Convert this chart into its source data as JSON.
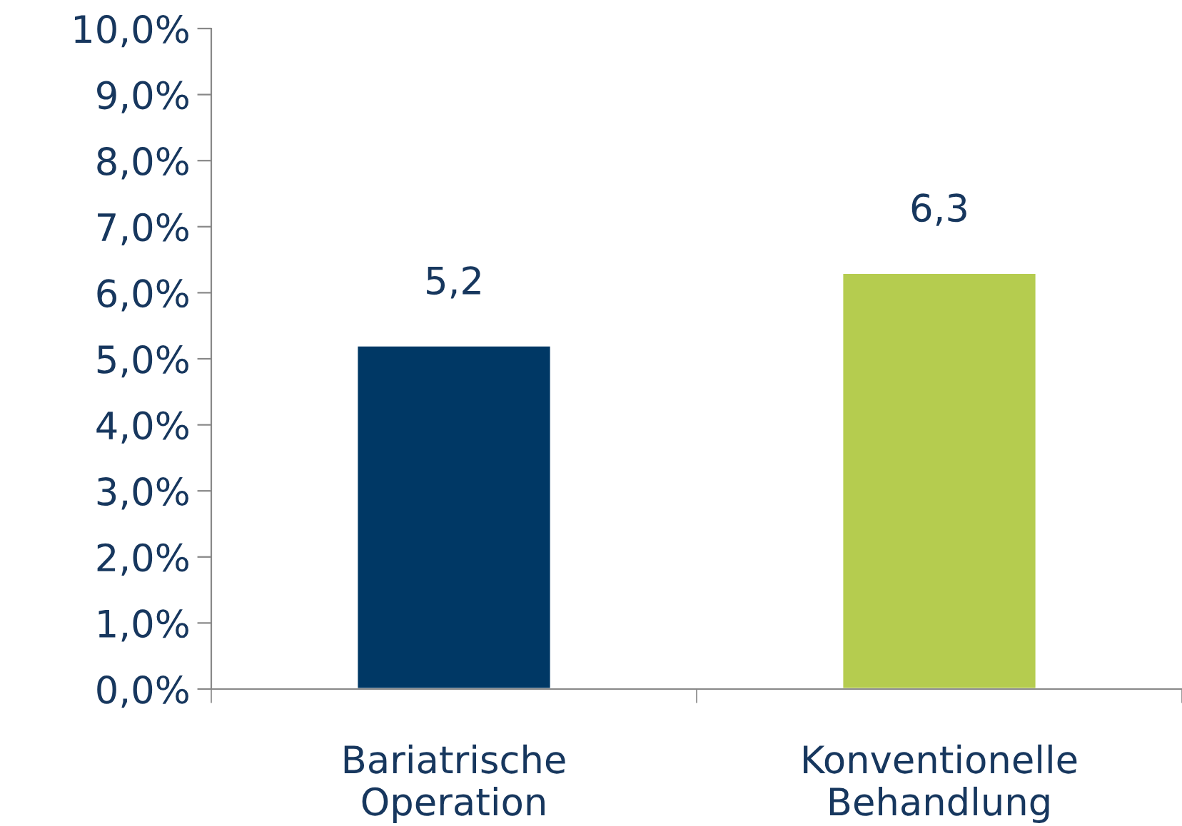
{
  "chart_data": {
    "type": "bar",
    "categories": [
      "Bariatrische\nOperation",
      "Konventionelle\nBehandlung"
    ],
    "values": [
      5.2,
      6.3
    ],
    "colors": [
      "#003865",
      "#b5cc4f"
    ],
    "value_labels": [
      "5,2",
      "6,3"
    ],
    "ylim": [
      0,
      10
    ],
    "yticks": [
      {
        "value": 0,
        "label": "0,0%"
      },
      {
        "value": 1,
        "label": "1,0%"
      },
      {
        "value": 2,
        "label": "2,0%"
      },
      {
        "value": 3,
        "label": "3,0%"
      },
      {
        "value": 4,
        "label": "4,0%"
      },
      {
        "value": 5,
        "label": "5,0%"
      },
      {
        "value": 6,
        "label": "6,0%"
      },
      {
        "value": 7,
        "label": "7,0%"
      },
      {
        "value": 8,
        "label": "8,0%"
      },
      {
        "value": 9,
        "label": "9,0%"
      },
      {
        "value": 10,
        "label": "10,0%"
      }
    ],
    "grid": false,
    "legend": false
  }
}
